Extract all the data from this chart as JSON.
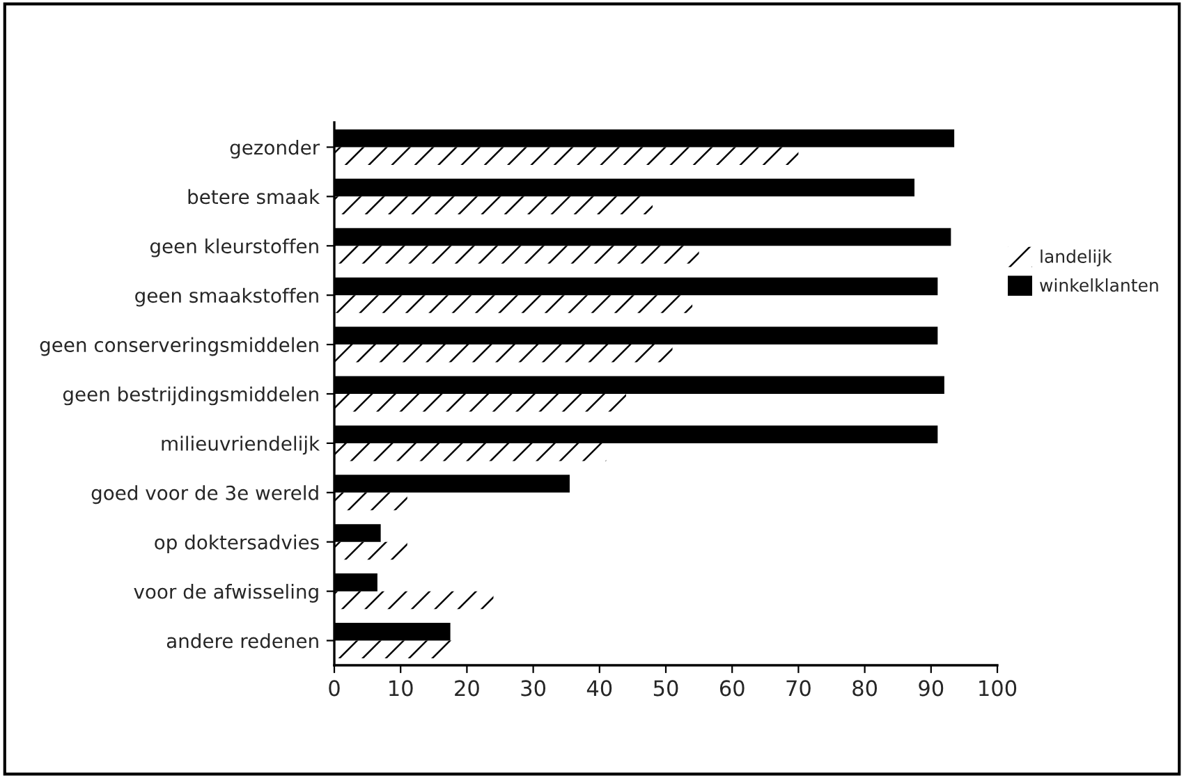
{
  "chart_data": {
    "type": "bar",
    "orientation": "horizontal",
    "categories": [
      "gezonder",
      "betere smaak",
      "geen kleurstoffen",
      "geen smaakstoffen",
      "geen conserveringsmiddelen",
      "geen bestrijdingsmiddelen",
      "milieuvriendelijk",
      "goed voor de 3e wereld",
      "op doktersadvies",
      "voor de afwisseling",
      "andere redenen"
    ],
    "series": [
      {
        "name": "landelijk",
        "color": "#ffffff",
        "values": [
          70,
          48,
          55,
          54,
          51,
          44,
          41,
          11,
          11,
          24,
          18
        ]
      },
      {
        "name": "winkelklanten",
        "color": "#000000",
        "values": [
          93.5,
          87.5,
          93,
          91,
          91,
          92,
          91,
          35.5,
          7,
          6.5,
          17.5
        ]
      }
    ],
    "xlim": [
      0,
      100
    ],
    "xticks": [
      0,
      10,
      20,
      30,
      40,
      50,
      60,
      70,
      80,
      90,
      100
    ],
    "grid": false,
    "legend": "right"
  }
}
